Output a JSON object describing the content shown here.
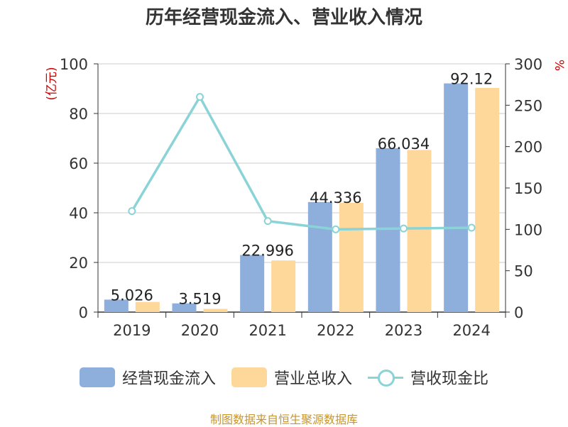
{
  "title": "历年经营现金流入、营业收入情况",
  "source": "制图数据来自恒生聚源数据库",
  "colors": {
    "cash_inflow": "#8eaedc",
    "revenue": "#fdd89a",
    "ratio": "#8ad3d6",
    "axis_unit": "#cc0000",
    "grid": "#cccccc",
    "text": "#333333"
  },
  "legend": [
    {
      "label": "经营现金流入",
      "type": "bar"
    },
    {
      "label": "营业总收入",
      "type": "bar"
    },
    {
      "label": "营收现金比",
      "type": "line"
    }
  ],
  "chart_data": {
    "type": "bar",
    "title": "历年经营现金流入、营业收入情况",
    "categories": [
      "2019",
      "2020",
      "2021",
      "2022",
      "2023",
      "2024"
    ],
    "y_left": {
      "label": "(亿元)",
      "range": [
        0,
        100
      ],
      "ticks": [
        0,
        20,
        40,
        60,
        80,
        100
      ]
    },
    "y_right": {
      "label": "%",
      "range": [
        0,
        300
      ],
      "ticks": [
        0,
        50,
        100,
        150,
        200,
        250,
        300
      ]
    },
    "grid": true,
    "legend_position": "bottom",
    "series": [
      {
        "name": "经营现金流入",
        "type": "bar",
        "axis": "left",
        "values": [
          5.026,
          3.519,
          22.996,
          44.336,
          66.034,
          92.12
        ],
        "labels": [
          "5.026",
          "3.519",
          "22.996",
          "44.336",
          "66.034",
          "92.12"
        ]
      },
      {
        "name": "营业总收入",
        "type": "bar",
        "axis": "left",
        "values": [
          4.1,
          1.3,
          20.8,
          44.0,
          65.3,
          90.3
        ]
      },
      {
        "name": "营收现金比",
        "type": "line",
        "axis": "right",
        "values": [
          122,
          260,
          110,
          100,
          101,
          102
        ]
      }
    ]
  }
}
